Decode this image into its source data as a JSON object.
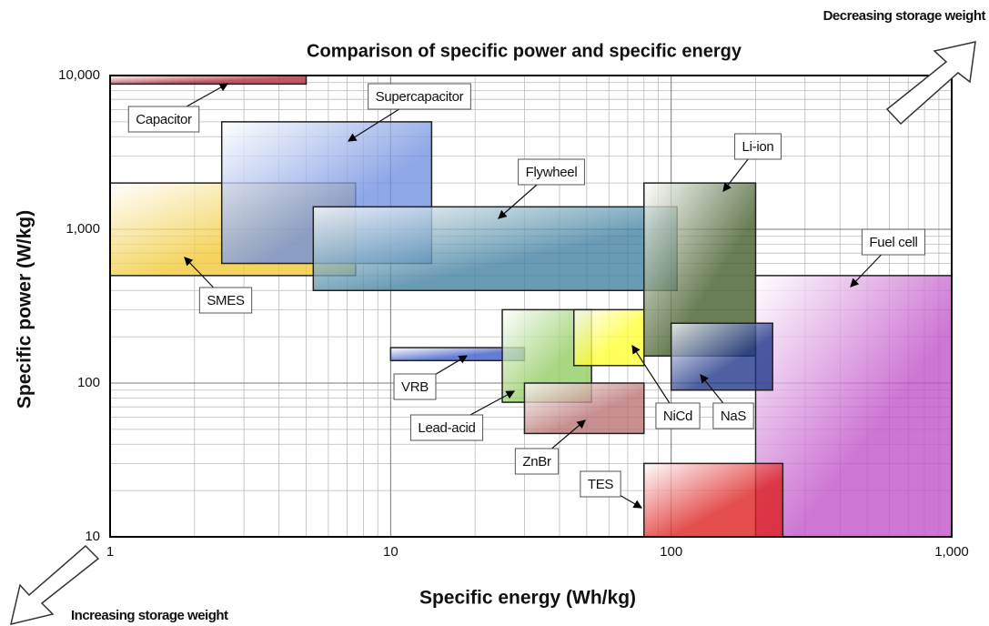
{
  "chart_data": {
    "type": "range-box",
    "title": "Comparison of specific power and specific energy",
    "x_label": "Specific energy (Wh/kg)",
    "y_label": "Specific power (W/kg)",
    "annotations": [
      "Decreasing storage weight",
      "Increasing storage weight"
    ],
    "log_x": true,
    "log_y": true,
    "grid": true,
    "minor_grid": true,
    "xlim": [
      1,
      1000
    ],
    "ylim": [
      10,
      10000
    ],
    "xticks": [
      1,
      10,
      100,
      {
        "value": 1000,
        "label": "1,000"
      }
    ],
    "yticks": [
      10,
      100,
      {
        "value": 1000,
        "label": "1,000"
      },
      {
        "value": 10000,
        "label": "10,000"
      }
    ],
    "series": [
      {
        "name": "Capacitor",
        "color": "#b02838",
        "x": [
          1,
          5
        ],
        "y": [
          8800,
          10000
        ]
      },
      {
        "name": "SMES",
        "color": "#f0c830",
        "x": [
          1,
          7.5
        ],
        "y": [
          500,
          2000
        ]
      },
      {
        "name": "Supercapacitor",
        "color": "#6f8fe0",
        "x": [
          2.5,
          14
        ],
        "y": [
          600,
          5000
        ]
      },
      {
        "name": "Flywheel",
        "color": "#3f7f9f",
        "x": [
          5.3,
          105
        ],
        "y": [
          400,
          1400
        ]
      },
      {
        "name": "Li-ion",
        "color": "#3f5a25",
        "x": [
          80,
          200
        ],
        "y": [
          150,
          2000
        ]
      },
      {
        "name": "Fuel cell",
        "color": "#c050c8",
        "x": [
          200,
          1000
        ],
        "y": [
          10,
          500
        ]
      },
      {
        "name": "VRB",
        "color": "#3858c8",
        "x": [
          10,
          30
        ],
        "y": [
          140,
          170
        ]
      },
      {
        "name": "Lead-acid",
        "color": "#90cc60",
        "x": [
          25,
          52
        ],
        "y": [
          75,
          300
        ]
      },
      {
        "name": "NiCd",
        "color": "#ffff30",
        "x": [
          45,
          80
        ],
        "y": [
          130,
          300
        ]
      },
      {
        "name": "ZnBr",
        "color": "#b87070",
        "x": [
          30,
          80
        ],
        "y": [
          47,
          100
        ]
      },
      {
        "name": "NaS",
        "color": "#1c3488",
        "x": [
          100,
          230
        ],
        "y": [
          90,
          245
        ]
      },
      {
        "name": "TES",
        "color": "#dd1c1c",
        "x": [
          80,
          250
        ],
        "y": [
          10,
          30
        ]
      }
    ]
  }
}
